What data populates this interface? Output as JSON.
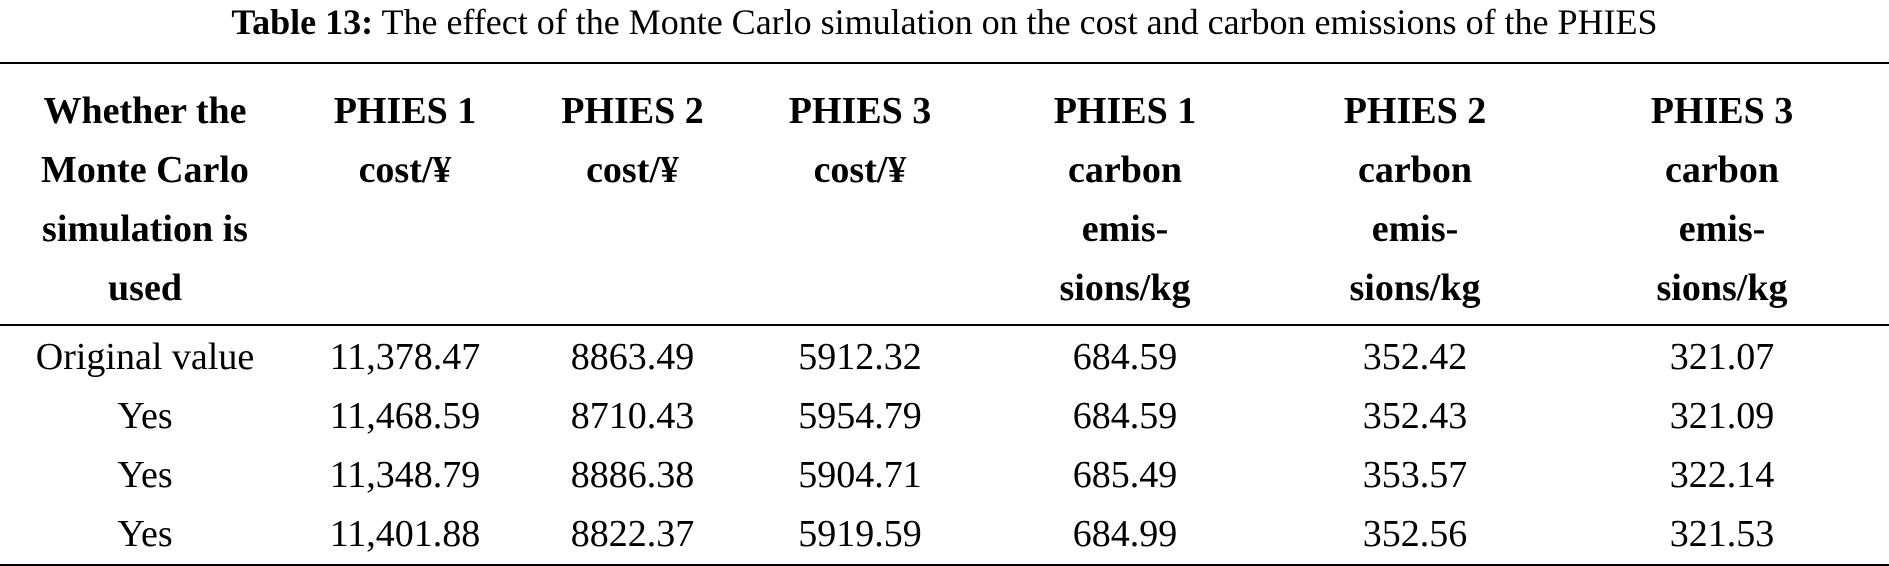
{
  "caption": {
    "label": "Table 13:",
    "text": "The effect of the Monte Carlo simulation on the cost and carbon emissions of the PHIES"
  },
  "table": {
    "headers": [
      "Whether the\nMonte Carlo\nsimulation is\nused",
      "PHIES 1\ncost/¥",
      "PHIES 2\ncost/¥",
      "PHIES 3\ncost/¥",
      "PHIES 1\ncarbon\nemis-\nsions/kg",
      "PHIES 2\ncarbon\nemis-\nsions/kg",
      "PHIES 3\ncarbon\nemis-\nsions/kg"
    ],
    "rows": [
      [
        "Original value",
        "11,378.47",
        "8863.49",
        "5912.32",
        "684.59",
        "352.42",
        "321.07"
      ],
      [
        "Yes",
        "11,468.59",
        "8710.43",
        "5954.79",
        "684.59",
        "352.43",
        "321.09"
      ],
      [
        "Yes",
        "11,348.79",
        "8886.38",
        "5904.71",
        "685.49",
        "353.57",
        "322.14"
      ],
      [
        "Yes",
        "11,401.88",
        "8822.37",
        "5919.59",
        "684.99",
        "352.56",
        "321.53"
      ]
    ]
  }
}
